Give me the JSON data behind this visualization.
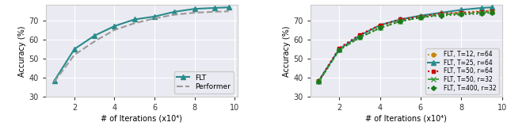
{
  "left": {
    "x": [
      1,
      2,
      3,
      4,
      5,
      6,
      7,
      8,
      9,
      9.7
    ],
    "flt_y": [
      38.5,
      55.0,
      62.0,
      67.0,
      70.5,
      72.0,
      74.5,
      76.0,
      76.5,
      76.8
    ],
    "performer_y": [
      38.0,
      52.0,
      59.0,
      65.0,
      68.5,
      71.0,
      73.0,
      74.0,
      74.5,
      74.7
    ],
    "flt_color": "#2a8b8b",
    "performer_color": "#999999",
    "ylabel": "Accuracy (%)",
    "xlabel": "# of Iterations (x10⁴)",
    "ylim": [
      30,
      78
    ],
    "yticks": [
      30,
      40,
      50,
      60,
      70
    ],
    "xticks": [
      2,
      4,
      6,
      8,
      10
    ],
    "grid": true
  },
  "right": {
    "x": [
      1,
      2,
      3,
      4,
      5,
      6,
      7,
      8,
      9,
      9.5
    ],
    "t12r64_y": [
      38.5,
      55.0,
      61.5,
      67.0,
      70.0,
      72.0,
      73.5,
      74.0,
      75.0,
      75.2
    ],
    "t25r64_y": [
      38.5,
      55.0,
      62.0,
      67.5,
      70.5,
      72.5,
      74.0,
      75.5,
      76.5,
      76.8
    ],
    "t50r64_y": [
      38.5,
      55.5,
      62.5,
      67.5,
      70.5,
      72.0,
      73.5,
      74.0,
      74.5,
      75.0
    ],
    "t50r32_y": [
      38.0,
      54.5,
      61.0,
      66.0,
      69.5,
      71.5,
      73.0,
      73.5,
      74.0,
      74.5
    ],
    "t400r32_y": [
      38.0,
      54.5,
      61.0,
      66.0,
      69.5,
      71.5,
      72.5,
      73.0,
      73.5,
      74.0
    ],
    "t12r64_color": "#c8860a",
    "t25r64_color": "#2a8b8b",
    "t50r64_color": "#cc0000",
    "t50r32_color": "#3a9a3a",
    "t400r32_color": "#1a7a1a",
    "ylabel": "Accuracy (%)",
    "xlabel": "# of Iterations (x10⁴)",
    "ylim": [
      30,
      78
    ],
    "yticks": [
      30,
      40,
      50,
      60,
      70
    ],
    "xticks": [
      2,
      4,
      6,
      8,
      10
    ],
    "grid": true
  },
  "bg_color": "#eaeaf2",
  "grid_color": "#ffffff",
  "fig_bg": "#ffffff"
}
